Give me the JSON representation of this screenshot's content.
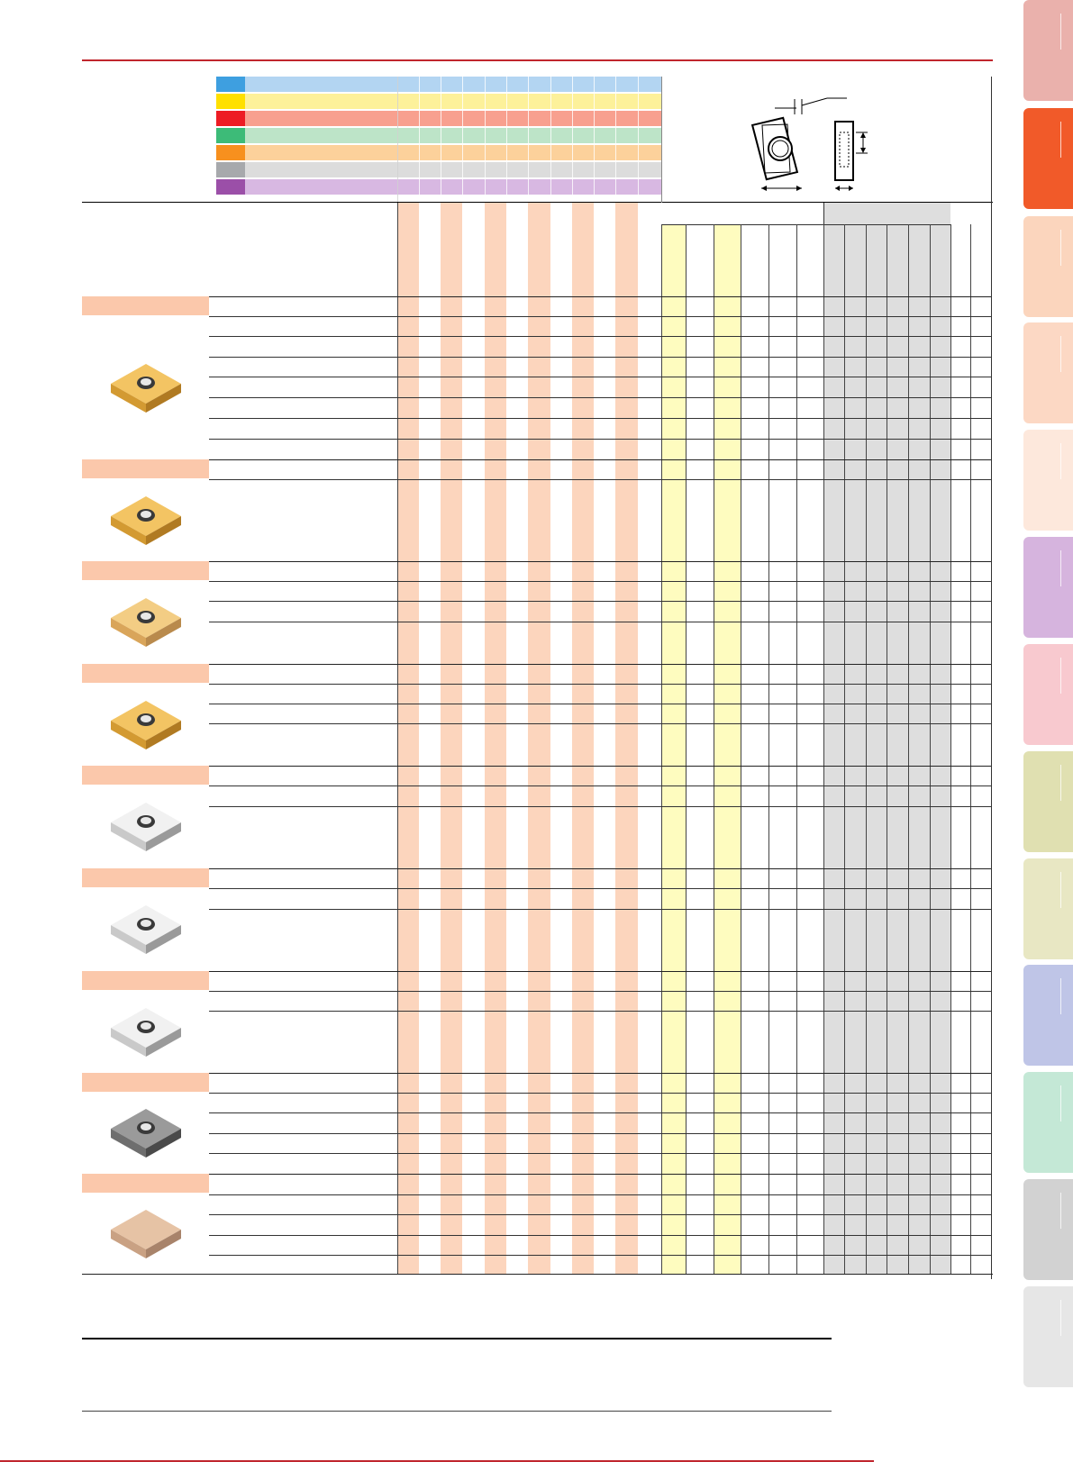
{
  "section_tabs": {
    "colors": [
      "#eab1ac",
      "#f15a29",
      "#fbd5bd",
      "#fcd8c4",
      "#fde8dc",
      "#d6b4de",
      "#f8c9cf",
      "#e0e0b1",
      "#e8e7c3",
      "#bfc5e7",
      "#c4e8d6",
      "#d2d2d2",
      "#e6e6e6"
    ],
    "active_index": 1
  },
  "material_bands": {
    "colors": [
      {
        "swatch": "#3e9fe0",
        "band": "#b3d5f2"
      },
      {
        "swatch": "#ffe000",
        "band": "#fdf19a"
      },
      {
        "swatch": "#ed1c24",
        "band": "#f8a08f"
      },
      {
        "swatch": "#3dbb78",
        "band": "#bde4c8"
      },
      {
        "swatch": "#f7901e",
        "band": "#fcd19b"
      },
      {
        "swatch": "#a7a9ac",
        "band": "#dcdcdc"
      },
      {
        "swatch": "#9b4fa8",
        "band": "#d8b8e2"
      }
    ]
  },
  "insert_groups": {
    "images": [
      {
        "style": "gold"
      },
      {
        "style": "gold"
      },
      {
        "style": "gold-light"
      },
      {
        "style": "gold"
      },
      {
        "style": "silver"
      },
      {
        "style": "silver"
      },
      {
        "style": "silver"
      },
      {
        "style": "dark"
      },
      {
        "style": "ceramic"
      }
    ]
  },
  "diagram": {
    "icon": "insert-dimension-diagram"
  },
  "colors": {
    "accent_red": "#c0262d",
    "grade_salmon": "#fcd5bd",
    "recommended_yellow": "#fefcbf",
    "edge_grey": "#dedede"
  }
}
